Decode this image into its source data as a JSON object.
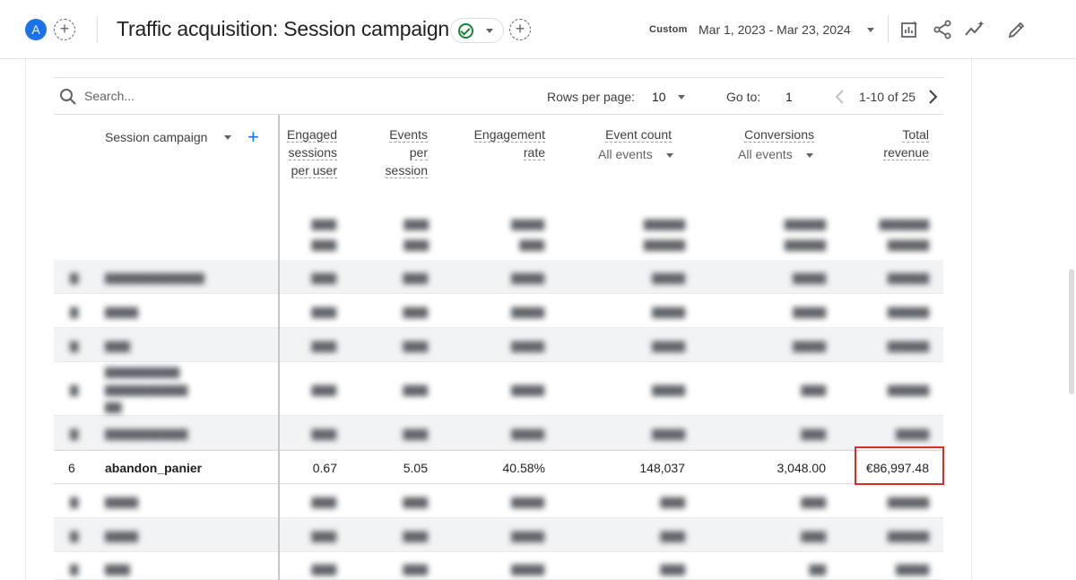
{
  "header": {
    "avatar_letter": "A",
    "add_comparison": "+",
    "title": "Traffic acquisition: Session campaign",
    "add_report_button": "+",
    "date_label": "Custom",
    "date_range": "Mar 1, 2023 - Mar 23, 2024",
    "icons": [
      "customize-report-icon",
      "share-icon",
      "insights-icon",
      "edit-icon"
    ]
  },
  "toolbar": {
    "search_placeholder": "Search...",
    "rows_per_page_label": "Rows per page:",
    "rows_per_page_value": "10",
    "go_to_label": "Go to:",
    "go_to_value": "1",
    "pager_text": "1-10 of 25"
  },
  "table": {
    "dimension_header": "Session campaign",
    "columns": [
      {
        "l1": "Engaged",
        "l2": "sessions",
        "l3": "per user"
      },
      {
        "l1": "Events",
        "l2": "per",
        "l3": "session"
      },
      {
        "l1": "Engagement",
        "l2": "rate",
        "l3": ""
      },
      {
        "l1": "Event count",
        "sub": "All events"
      },
      {
        "l1": "Conversions",
        "sub": "All events"
      },
      {
        "l1": "Total",
        "l2": "revenue",
        "l3": ""
      }
    ],
    "highlighted_row": {
      "index": "6",
      "campaign": "abandon_panier",
      "engaged_sessions_per_user": "0.67",
      "events_per_session": "5.05",
      "engagement_rate": "40.58%",
      "event_count": "148,037",
      "conversions": "3,048.00",
      "total_revenue": "€86,997.48"
    }
  }
}
